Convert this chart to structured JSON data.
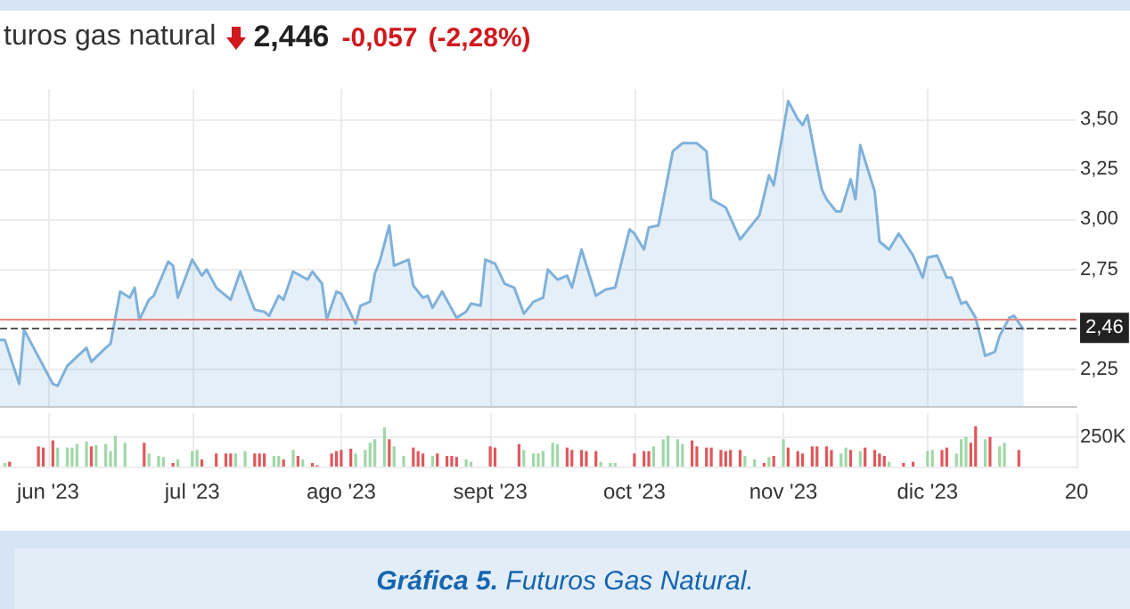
{
  "chart_data": [
    {
      "type": "area",
      "title": "turos gas natural",
      "annotations": [
        "2,446",
        "-0,057",
        "(-2,28%)",
        "Gráfica 5. Futuros Gas Natural."
      ],
      "x": [
        "2023-05-22",
        "2023-05-23",
        "2023-05-26",
        "2023-05-27",
        "2023-05-29",
        "2023-06-02",
        "2023-06-03",
        "2023-06-05",
        "2023-06-09",
        "2023-06-10",
        "2023-06-13",
        "2023-06-14",
        "2023-06-16",
        "2023-06-18",
        "2023-06-19",
        "2023-06-20",
        "2023-06-22",
        "2023-06-23",
        "2023-06-26",
        "2023-06-27",
        "2023-06-28",
        "2023-07-01",
        "2023-07-03",
        "2023-07-04",
        "2023-07-06",
        "2023-07-09",
        "2023-07-11",
        "2023-07-13",
        "2023-07-14",
        "2023-07-16",
        "2023-07-17",
        "2023-07-19",
        "2023-07-20",
        "2023-07-22",
        "2023-07-25",
        "2023-07-26",
        "2023-07-28",
        "2023-07-29",
        "2023-07-31",
        "2023-08-01",
        "2023-08-04",
        "2023-08-05",
        "2023-08-07",
        "2023-08-08",
        "2023-08-09",
        "2023-08-11",
        "2023-08-12",
        "2023-08-15",
        "2023-08-16",
        "2023-08-18",
        "2023-08-19",
        "2023-08-20",
        "2023-08-22",
        "2023-08-25",
        "2023-08-27",
        "2023-08-28",
        "2023-08-30",
        "2023-08-31",
        "2023-09-02",
        "2023-09-04",
        "2023-09-06",
        "2023-09-08",
        "2023-09-10",
        "2023-09-12",
        "2023-09-13",
        "2023-09-15",
        "2023-09-17",
        "2023-09-18",
        "2023-09-20",
        "2023-09-23",
        "2023-09-25",
        "2023-09-27",
        "2023-09-30",
        "2023-10-01",
        "2023-10-03",
        "2023-10-04",
        "2023-10-06",
        "2023-10-09",
        "2023-10-11",
        "2023-10-14",
        "2023-10-16",
        "2023-10-17",
        "2023-10-20",
        "2023-10-23",
        "2023-10-27",
        "2023-10-29",
        "2023-10-30",
        "2023-11-02",
        "2023-11-04",
        "2023-11-05",
        "2023-11-06",
        "2023-11-08",
        "2023-11-09",
        "2023-11-10",
        "2023-11-12",
        "2023-11-13",
        "2023-11-15",
        "2023-11-16",
        "2023-11-17",
        "2023-11-20",
        "2023-11-21",
        "2023-11-23",
        "2023-11-25",
        "2023-11-28",
        "2023-11-30",
        "2023-12-01",
        "2023-12-03",
        "2023-12-05",
        "2023-12-06",
        "2023-12-08",
        "2023-12-09",
        "2023-12-11",
        "2023-12-13",
        "2023-12-15",
        "2023-12-16",
        "2023-12-18",
        "2023-12-19",
        "2023-12-21"
      ],
      "series": [
        {
          "color": "#7fb1da",
          "values": [
            2.4,
            2.4,
            2.18,
            2.45,
            2.36,
            2.18,
            2.17,
            2.27,
            2.36,
            2.29,
            2.36,
            2.38,
            2.64,
            2.61,
            2.66,
            2.5,
            2.6,
            2.62,
            2.79,
            2.77,
            2.61,
            2.8,
            2.72,
            2.75,
            2.66,
            2.6,
            2.74,
            2.61,
            2.55,
            2.54,
            2.52,
            2.62,
            2.6,
            2.74,
            2.7,
            2.74,
            2.68,
            2.5,
            2.64,
            2.63,
            2.48,
            2.57,
            2.59,
            2.73,
            2.79,
            2.97,
            2.77,
            2.8,
            2.67,
            2.61,
            2.62,
            2.56,
            2.64,
            2.51,
            2.54,
            2.58,
            2.57,
            2.8,
            2.78,
            2.68,
            2.66,
            2.53,
            2.59,
            2.61,
            2.75,
            2.7,
            2.72,
            2.66,
            2.85,
            2.62,
            2.65,
            2.66,
            2.95,
            2.93,
            2.85,
            2.96,
            2.97,
            3.34,
            3.38,
            3.38,
            3.34,
            3.1,
            3.06,
            2.9,
            3.02,
            3.22,
            3.17,
            3.59,
            3.5,
            3.47,
            3.52,
            3.27,
            3.15,
            3.1,
            3.04,
            3.04,
            3.2,
            3.1,
            3.37,
            3.14,
            2.89,
            2.85,
            2.93,
            2.82,
            2.71,
            2.81,
            2.82,
            2.71,
            2.71,
            2.58,
            2.59,
            2.51,
            2.32,
            2.34,
            2.42,
            2.51,
            2.52,
            2.45
          ]
        }
      ],
      "xlim": [
        "2023-05-22",
        "2024-01-01"
      ],
      "xticks": [
        {
          "value": "2023-06-01",
          "label": null
        },
        {
          "value": "2023-07-01",
          "label": null
        },
        {
          "value": "2023-08-01",
          "label": null
        },
        {
          "value": "2023-09-01",
          "label": null
        },
        {
          "value": "2023-10-01",
          "label": null
        },
        {
          "value": "2023-11-01",
          "label": null
        },
        {
          "value": "2023-12-01",
          "label": null
        }
      ],
      "ylim": [
        2.07,
        3.65
      ],
      "yticks": [
        {
          "value": 2.25,
          "label": "2,25"
        },
        {
          "value": 2.5,
          "label": null
        },
        {
          "value": 2.75,
          "label": "2,75"
        },
        {
          "value": 3,
          "label": "3,00"
        },
        {
          "value": 3.25,
          "label": "3,25"
        },
        {
          "value": 3.5,
          "label": "3,50"
        }
      ],
      "tick_labels": "y",
      "grid": true,
      "marker": "none",
      "ref_lines": [
        {
          "axis": "y",
          "value": 2.503,
          "color": "#e8877f",
          "line_style": "solid"
        },
        {
          "axis": "y",
          "value": 2.46,
          "label": "2,46",
          "color": "#555555",
          "line_style": "dashed"
        }
      ]
    },
    {
      "type": "bar",
      "x": [
        "2023-05-23",
        "2023-05-24",
        "2023-05-30",
        "2023-05-31",
        "2023-06-02",
        "2023-06-03",
        "2023-06-05",
        "2023-06-06",
        "2023-06-07",
        "2023-06-09",
        "2023-06-10",
        "2023-06-11",
        "2023-06-13",
        "2023-06-14",
        "2023-06-15",
        "2023-06-17",
        "2023-06-21",
        "2023-06-22",
        "2023-06-24",
        "2023-06-25",
        "2023-06-27",
        "2023-06-28",
        "2023-07-01",
        "2023-07-02",
        "2023-07-03",
        "2023-07-06",
        "2023-07-08",
        "2023-07-09",
        "2023-07-10",
        "2023-07-12",
        "2023-07-14",
        "2023-07-15",
        "2023-07-16",
        "2023-07-18",
        "2023-07-19",
        "2023-07-20",
        "2023-07-22",
        "2023-07-23",
        "2023-07-24",
        "2023-07-26",
        "2023-07-27",
        "2023-07-30",
        "2023-07-31",
        "2023-08-01",
        "2023-08-03",
        "2023-08-04",
        "2023-08-06",
        "2023-08-07",
        "2023-08-08",
        "2023-08-10",
        "2023-08-11",
        "2023-08-12",
        "2023-08-14",
        "2023-08-16",
        "2023-08-17",
        "2023-08-18",
        "2023-08-20",
        "2023-08-21",
        "2023-08-23",
        "2023-08-24",
        "2023-08-25",
        "2023-08-27",
        "2023-08-28",
        "2023-09-01",
        "2023-09-02",
        "2023-09-07",
        "2023-09-08",
        "2023-09-10",
        "2023-09-11",
        "2023-09-12",
        "2023-09-14",
        "2023-09-15",
        "2023-09-17",
        "2023-09-18",
        "2023-09-20",
        "2023-09-21",
        "2023-09-23",
        "2023-09-24",
        "2023-09-26",
        "2023-09-27",
        "2023-10-01",
        "2023-10-03",
        "2023-10-04",
        "2023-10-05",
        "2023-10-07",
        "2023-10-08",
        "2023-10-10",
        "2023-10-11",
        "2023-10-13",
        "2023-10-14",
        "2023-10-16",
        "2023-10-17",
        "2023-10-19",
        "2023-10-20",
        "2023-10-21",
        "2023-10-23",
        "2023-10-24",
        "2023-10-26",
        "2023-10-28",
        "2023-10-29",
        "2023-10-30",
        "2023-11-01",
        "2023-11-02",
        "2023-11-04",
        "2023-11-05",
        "2023-11-07",
        "2023-11-08",
        "2023-11-10",
        "2023-11-11",
        "2023-11-13",
        "2023-11-14",
        "2023-11-15",
        "2023-11-17",
        "2023-11-18",
        "2023-11-20",
        "2023-11-21",
        "2023-11-22",
        "2023-11-23",
        "2023-11-26",
        "2023-11-28",
        "2023-12-01",
        "2023-12-02",
        "2023-12-04",
        "2023-12-05",
        "2023-12-07",
        "2023-12-08",
        "2023-12-09",
        "2023-12-10",
        "2023-12-11",
        "2023-12-13",
        "2023-12-14",
        "2023-12-16",
        "2023-12-17",
        "2023-12-20"
      ],
      "values": [
        30000,
        40000,
        170000,
        160000,
        220000,
        160000,
        160000,
        160000,
        190000,
        210000,
        170000,
        180000,
        190000,
        130000,
        260000,
        200000,
        200000,
        110000,
        90000,
        80000,
        30000,
        60000,
        130000,
        140000,
        60000,
        110000,
        110000,
        110000,
        110000,
        130000,
        110000,
        110000,
        110000,
        90000,
        90000,
        60000,
        140000,
        90000,
        60000,
        30000,
        10000,
        110000,
        130000,
        140000,
        150000,
        110000,
        140000,
        200000,
        230000,
        330000,
        230000,
        170000,
        90000,
        160000,
        130000,
        110000,
        90000,
        110000,
        90000,
        90000,
        80000,
        60000,
        40000,
        170000,
        160000,
        190000,
        140000,
        110000,
        110000,
        130000,
        200000,
        190000,
        160000,
        140000,
        140000,
        130000,
        130000,
        40000,
        30000,
        30000,
        110000,
        130000,
        130000,
        170000,
        230000,
        260000,
        230000,
        190000,
        220000,
        170000,
        160000,
        160000,
        140000,
        130000,
        140000,
        140000,
        90000,
        60000,
        30000,
        80000,
        90000,
        230000,
        160000,
        130000,
        110000,
        170000,
        170000,
        170000,
        140000,
        110000,
        160000,
        140000,
        130000,
        160000,
        140000,
        110000,
        90000,
        40000,
        30000,
        40000,
        130000,
        140000,
        140000,
        160000,
        110000,
        230000,
        250000,
        200000,
        340000,
        230000,
        250000,
        170000,
        200000,
        140000
      ],
      "colors": [
        "#9fd8a6",
        "#e0575b",
        "#e0575b",
        "#e0575b",
        "#e0575b",
        "#9fd8a6",
        "#9fd8a6",
        "#9fd8a6",
        "#9fd8a6",
        "#9fd8a6",
        "#e0575b",
        "#9fd8a6",
        "#9fd8a6",
        "#9fd8a6",
        "#9fd8a6",
        "#9fd8a6",
        "#e0575b",
        "#9fd8a6",
        "#9fd8a6",
        "#9fd8a6",
        "#e0575b",
        "#9fd8a6",
        "#9fd8a6",
        "#9fd8a6",
        "#e0575b",
        "#e0575b",
        "#e0575b",
        "#e0575b",
        "#9fd8a6",
        "#9fd8a6",
        "#e0575b",
        "#e0575b",
        "#e0575b",
        "#9fd8a6",
        "#9fd8a6",
        "#e0575b",
        "#9fd8a6",
        "#e0575b",
        "#9fd8a6",
        "#e0575b",
        "#e0575b",
        "#e0575b",
        "#e0575b",
        "#e0575b",
        "#e0575b",
        "#9fd8a6",
        "#9fd8a6",
        "#9fd8a6",
        "#9fd8a6",
        "#9fd8a6",
        "#e0575b",
        "#9fd8a6",
        "#9fd8a6",
        "#e0575b",
        "#e0575b",
        "#e0575b",
        "#9fd8a6",
        "#e0575b",
        "#e0575b",
        "#e0575b",
        "#e0575b",
        "#9fd8a6",
        "#9fd8a6",
        "#e0575b",
        "#e0575b",
        "#e0575b",
        "#9fd8a6",
        "#9fd8a6",
        "#9fd8a6",
        "#9fd8a6",
        "#9fd8a6",
        "#9fd8a6",
        "#e0575b",
        "#e0575b",
        "#e0575b",
        "#e0575b",
        "#e0575b",
        "#9fd8a6",
        "#9fd8a6",
        "#9fd8a6",
        "#e0575b",
        "#e0575b",
        "#e0575b",
        "#9fd8a6",
        "#9fd8a6",
        "#9fd8a6",
        "#9fd8a6",
        "#9fd8a6",
        "#e0575b",
        "#e0575b",
        "#e0575b",
        "#e0575b",
        "#e0575b",
        "#e0575b",
        "#e0575b",
        "#e0575b",
        "#9fd8a6",
        "#9fd8a6",
        "#e0575b",
        "#9fd8a6",
        "#e0575b",
        "#9fd8a6",
        "#e0575b",
        "#e0575b",
        "#e0575b",
        "#e0575b",
        "#e0575b",
        "#e0575b",
        "#e0575b",
        "#9fd8a6",
        "#9fd8a6",
        "#e0575b",
        "#9fd8a6",
        "#e0575b",
        "#e0575b",
        "#e0575b",
        "#e0575b",
        "#9fd8a6",
        "#e0575b",
        "#e0575b",
        "#9fd8a6",
        "#9fd8a6",
        "#e0575b",
        "#e0575b",
        "#9fd8a6",
        "#9fd8a6",
        "#9fd8a6",
        "#e0575b",
        "#e0575b",
        "#9fd8a6",
        "#e0575b",
        "#9fd8a6",
        "#9fd8a6",
        "#e0575b"
      ],
      "xlim": [
        "2023-05-22",
        "2024-01-01"
      ],
      "xticks": [
        {
          "value": "2023-06-01",
          "label": "jun '23"
        },
        {
          "value": "2023-07-01",
          "label": "jul '23"
        },
        {
          "value": "2023-08-01",
          "label": "ago '23"
        },
        {
          "value": "2023-09-01",
          "label": "sept '23"
        },
        {
          "value": "2023-10-01",
          "label": "oct '23"
        },
        {
          "value": "2023-11-01",
          "label": "nov '23"
        },
        {
          "value": "2023-12-01",
          "label": "dic '23"
        },
        {
          "value": "2024-01-01",
          "label": "20"
        }
      ],
      "ylim": [
        0,
        450000
      ],
      "yticks": [
        {
          "value": 0,
          "label": null
        },
        {
          "value": 250000,
          "label": "250K"
        }
      ],
      "grid": true
    }
  ]
}
